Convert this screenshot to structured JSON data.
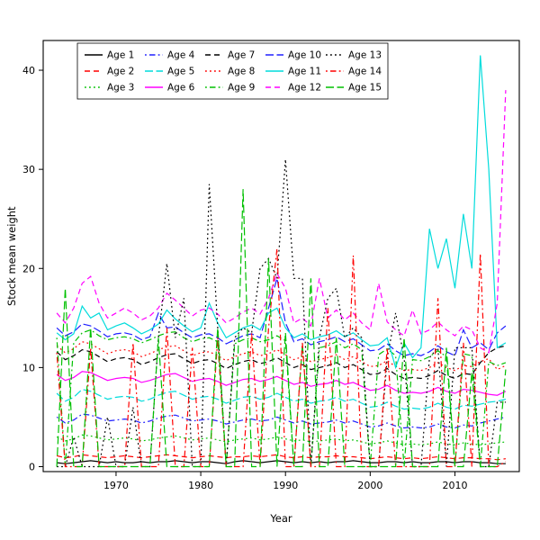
{
  "chart_data": {
    "type": "line",
    "title": "",
    "xlabel": "Year",
    "ylabel": "Stock mean weight",
    "xlim": [
      1961.4,
      2017.6
    ],
    "ylim": [
      -0.5,
      43
    ],
    "x_ticks": [
      1970,
      1980,
      1990,
      2000,
      2010
    ],
    "y_ticks": [
      0,
      10,
      20,
      30,
      40
    ],
    "grid": false,
    "legend_position": "top-left-inside",
    "legend_columns": 5,
    "x": [
      1963,
      1964,
      1965,
      1966,
      1967,
      1968,
      1969,
      1970,
      1971,
      1972,
      1973,
      1974,
      1975,
      1976,
      1977,
      1978,
      1979,
      1980,
      1981,
      1982,
      1983,
      1984,
      1985,
      1986,
      1987,
      1988,
      1989,
      1990,
      1991,
      1992,
      1993,
      1994,
      1995,
      1996,
      1997,
      1998,
      1999,
      2000,
      2001,
      2002,
      2003,
      2004,
      2005,
      2006,
      2007,
      2008,
      2009,
      2010,
      2011,
      2012,
      2013,
      2014,
      2015,
      2016
    ],
    "series": [
      {
        "name": "Age 1",
        "color": "#000000",
        "linestyle": "solid",
        "values": [
          0.4,
          0.3,
          0.4,
          0.5,
          0.6,
          0.5,
          0.4,
          0.5,
          0.4,
          0.4,
          0.5,
          0.4,
          0.5,
          0.5,
          0.6,
          0.5,
          0.4,
          0.5,
          0.5,
          0.4,
          0.3,
          0.5,
          0.6,
          0.5,
          0.4,
          0.5,
          0.6,
          0.5,
          0.4,
          0.5,
          0.4,
          0.5,
          0.4,
          0.5,
          0.5,
          0.6,
          0.5,
          0.4,
          0.4,
          0.5,
          0.5,
          0.4,
          0.5,
          0.4,
          0.4,
          0.5,
          0.5,
          0.4,
          0.5,
          0.5,
          0.4,
          0.4,
          0.3,
          0.3
        ]
      },
      {
        "name": "Age 2",
        "color": "#ff0000",
        "linestyle": "dashed",
        "values": [
          1.1,
          0.9,
          1.0,
          1.2,
          1.1,
          1.0,
          0.9,
          1.0,
          1.1,
          1.0,
          0.9,
          1.0,
          1.1,
          1.2,
          1.1,
          1.0,
          0.9,
          1.0,
          1.1,
          1.0,
          0.9,
          1.0,
          1.0,
          1.1,
          1.0,
          1.1,
          1.2,
          1.0,
          0.9,
          1.0,
          0.9,
          1.0,
          1.0,
          1.1,
          1.0,
          1.0,
          0.9,
          0.8,
          0.9,
          1.0,
          0.9,
          0.8,
          0.9,
          0.8,
          0.9,
          1.0,
          0.9,
          0.8,
          0.9,
          0.9,
          0.8,
          0.8,
          0.7,
          0.8
        ]
      },
      {
        "name": "Age 3",
        "color": "#00c000",
        "linestyle": "dotted",
        "values": [
          3.0,
          2.6,
          2.8,
          3.2,
          3.1,
          2.9,
          2.7,
          2.8,
          2.9,
          2.8,
          2.6,
          2.7,
          2.9,
          3.0,
          3.1,
          2.9,
          2.7,
          2.8,
          2.9,
          2.7,
          2.5,
          2.7,
          2.8,
          2.9,
          2.7,
          2.8,
          3.0,
          2.8,
          2.6,
          2.7,
          2.5,
          2.6,
          2.7,
          2.8,
          2.6,
          2.7,
          2.5,
          2.3,
          2.4,
          2.6,
          2.4,
          2.2,
          2.3,
          2.2,
          2.3,
          2.5,
          2.3,
          2.2,
          2.4,
          2.3,
          2.2,
          2.3,
          2.4,
          2.5
        ]
      },
      {
        "name": "Age 4",
        "color": "#2020ff",
        "linestyle": "dotdash",
        "values": [
          5.0,
          4.4,
          4.7,
          5.3,
          5.2,
          4.9,
          4.6,
          4.7,
          4.8,
          4.7,
          4.4,
          4.6,
          4.9,
          5.1,
          5.2,
          4.9,
          4.6,
          4.7,
          4.8,
          4.6,
          4.3,
          4.5,
          4.7,
          4.8,
          4.6,
          4.7,
          5.0,
          4.7,
          4.4,
          4.6,
          4.3,
          4.4,
          4.5,
          4.7,
          4.4,
          4.6,
          4.3,
          4.0,
          4.1,
          4.4,
          4.1,
          3.9,
          4.0,
          3.9,
          4.0,
          4.3,
          4.0,
          3.9,
          4.2,
          4.1,
          4.4,
          4.6,
          4.8,
          5.0
        ]
      },
      {
        "name": "Age 5",
        "color": "#00dcdc",
        "linestyle": "longdash",
        "values": [
          7.4,
          6.6,
          7.0,
          7.8,
          7.6,
          7.2,
          6.8,
          7.0,
          7.1,
          7.0,
          6.6,
          6.8,
          7.2,
          7.5,
          7.6,
          7.2,
          6.8,
          7.0,
          7.1,
          6.8,
          6.4,
          6.7,
          7.0,
          7.1,
          6.8,
          7.0,
          7.4,
          7.0,
          6.6,
          6.8,
          6.4,
          6.6,
          6.7,
          7.0,
          6.6,
          6.8,
          6.4,
          6.0,
          6.1,
          6.5,
          6.1,
          5.8,
          5.9,
          5.8,
          6.0,
          6.4,
          6.0,
          5.8,
          6.2,
          6.1,
          6.3,
          6.5,
          6.6,
          6.8
        ]
      },
      {
        "name": "Age 6",
        "color": "#ff00ff",
        "linestyle": "solid",
        "values": [
          9.3,
          8.7,
          9.0,
          9.6,
          9.5,
          9.1,
          8.7,
          8.9,
          9.0,
          8.9,
          8.5,
          8.7,
          9.0,
          9.3,
          9.4,
          9.0,
          8.6,
          8.8,
          8.9,
          8.6,
          8.2,
          8.5,
          8.8,
          8.9,
          8.6,
          8.8,
          9.1,
          8.7,
          8.3,
          8.5,
          8.1,
          8.3,
          8.4,
          8.7,
          8.3,
          8.5,
          8.1,
          7.7,
          7.8,
          8.2,
          7.7,
          7.4,
          7.5,
          7.4,
          7.6,
          8.0,
          7.6,
          7.4,
          7.8,
          7.7,
          7.5,
          7.3,
          7.2,
          7.6
        ]
      },
      {
        "name": "Age 7",
        "color": "#000000",
        "linestyle": "dashed",
        "values": [
          11.6,
          10.8,
          11.2,
          11.8,
          11.6,
          11.1,
          10.6,
          10.9,
          11.0,
          10.8,
          10.3,
          10.6,
          11.0,
          11.3,
          11.4,
          10.9,
          10.4,
          10.7,
          10.8,
          10.4,
          9.9,
          10.3,
          10.6,
          10.8,
          10.4,
          10.6,
          11.0,
          10.5,
          10.0,
          10.3,
          9.8,
          10.0,
          10.2,
          10.5,
          10.0,
          10.3,
          9.8,
          9.3,
          9.4,
          9.9,
          9.3,
          8.9,
          9.0,
          8.9,
          9.2,
          9.7,
          9.2,
          8.9,
          9.4,
          9.3,
          10.5,
          11.5,
          12.0,
          12.2
        ]
      },
      {
        "name": "Age 8",
        "color": "#ff0000",
        "linestyle": "dotted",
        "values": [
          12.2,
          11.5,
          11.9,
          12.6,
          12.4,
          11.9,
          11.4,
          11.7,
          11.8,
          11.6,
          11.1,
          11.4,
          11.8,
          12.1,
          12.2,
          11.7,
          11.2,
          11.5,
          11.6,
          11.2,
          10.7,
          11.1,
          11.4,
          11.6,
          11.2,
          11.4,
          11.8,
          11.3,
          10.8,
          11.1,
          10.6,
          10.8,
          11.0,
          11.3,
          10.8,
          11.1,
          10.6,
          10.1,
          10.2,
          10.7,
          10.1,
          9.7,
          9.8,
          9.7,
          10.0,
          10.5,
          10.0,
          9.7,
          10.2,
          10.1,
          10.6,
          10.9,
          9.8,
          10.2
        ]
      },
      {
        "name": "Age 9",
        "color": "#00c000",
        "linestyle": "dotdash",
        "values": [
          13.0,
          0,
          12.5,
          13.5,
          13.8,
          13.2,
          12.8,
          13.0,
          13.1,
          12.9,
          12.5,
          12.8,
          13.2,
          13.5,
          13.6,
          13.0,
          12.6,
          12.9,
          13.0,
          12.6,
          0,
          12.4,
          12.8,
          13.0,
          12.6,
          12.8,
          13.2,
          12.7,
          0,
          12.4,
          0,
          12.0,
          12.2,
          12.6,
          12.0,
          12.4,
          11.8,
          0,
          11.3,
          11.9,
          11.2,
          0,
          10.8,
          10.7,
          11.1,
          11.7,
          11.1,
          0,
          11.4,
          11.2,
          0,
          10.6,
          10.2,
          10.5
        ]
      },
      {
        "name": "Age 10",
        "color": "#2020ff",
        "linestyle": "longdash",
        "values": [
          14.0,
          13.2,
          13.6,
          14.4,
          14.2,
          13.7,
          13.1,
          13.4,
          13.5,
          13.3,
          12.8,
          13.1,
          15.5,
          14.0,
          14.1,
          13.5,
          13.0,
          13.3,
          13.4,
          13.0,
          12.4,
          12.8,
          13.2,
          13.4,
          13.0,
          16.0,
          19.0,
          14.5,
          12.6,
          12.9,
          12.3,
          12.6,
          12.8,
          13.1,
          12.6,
          12.9,
          12.3,
          11.7,
          11.8,
          12.4,
          11.7,
          11.2,
          11.4,
          11.2,
          11.6,
          12.2,
          11.6,
          11.2,
          13.8,
          12.0,
          12.5,
          11.8,
          13.5,
          14.2
        ]
      },
      {
        "name": "Age 11",
        "color": "#00dcdc",
        "linestyle": "solid",
        "values": [
          13.5,
          12.8,
          13.4,
          16.2,
          15.0,
          15.5,
          13.8,
          14.2,
          14.5,
          14.0,
          13.4,
          13.8,
          14.4,
          15.8,
          14.9,
          14.2,
          13.6,
          14.0,
          16.5,
          14.5,
          13.0,
          13.5,
          14.0,
          14.3,
          13.8,
          15.5,
          16.0,
          14.0,
          13.0,
          13.4,
          12.8,
          13.1,
          13.3,
          13.7,
          13.1,
          13.5,
          12.8,
          12.2,
          12.3,
          13.0,
          10.0,
          12.5,
          11.0,
          12.0,
          24.0,
          20.0,
          23.0,
          18.0,
          25.5,
          20.0,
          41.5,
          30.0,
          12.0,
          12.5
        ]
      },
      {
        "name": "Age 12",
        "color": "#ff00ff",
        "linestyle": "dashed",
        "values": [
          15.5,
          14.5,
          16.0,
          18.5,
          19.2,
          16.5,
          15.0,
          15.5,
          16.0,
          15.5,
          14.8,
          15.2,
          16.0,
          17.5,
          16.8,
          16.0,
          15.2,
          15.8,
          16.0,
          15.4,
          14.5,
          15.0,
          15.6,
          16.0,
          15.4,
          17.0,
          19.5,
          18.0,
          14.5,
          15.0,
          14.2,
          19.0,
          15.0,
          15.8,
          14.8,
          15.5,
          14.5,
          13.8,
          18.5,
          14.6,
          13.8,
          13.2,
          15.8,
          13.4,
          13.8,
          14.6,
          13.8,
          13.2,
          14.2,
          13.8,
          12.0,
          11.5,
          16.5,
          38.0
        ]
      },
      {
        "name": "Age 13",
        "color": "#000000",
        "linestyle": "dotted",
        "values": [
          0,
          0,
          3.0,
          0,
          0,
          0,
          5.0,
          0,
          0,
          6.0,
          0,
          0,
          13.0,
          20.5,
          13.0,
          17.0,
          0,
          0,
          28.5,
          14.0,
          0,
          13.0,
          14.0,
          13.5,
          20.0,
          21.0,
          19.0,
          31.0,
          19.0,
          19.0,
          0,
          13.0,
          17.0,
          18.0,
          13.0,
          14.0,
          13.0,
          0,
          0,
          11.0,
          15.5,
          11.0,
          0,
          0,
          11.0,
          12.0,
          0,
          12.0,
          12.0,
          12.0,
          0,
          0,
          6.5,
          6.5
        ]
      },
      {
        "name": "Age 14",
        "color": "#ff0000",
        "linestyle": "dotdash",
        "values": [
          11.5,
          0,
          0,
          0,
          12.0,
          0,
          0,
          0,
          0,
          12.5,
          0,
          0,
          0,
          14.0,
          0,
          0,
          12.0,
          0,
          0,
          13.0,
          0,
          0,
          0,
          13.5,
          0,
          14.0,
          22.0,
          0,
          0,
          12.5,
          0,
          0,
          16.0,
          0,
          0,
          21.3,
          0,
          0,
          0,
          12.0,
          0,
          0,
          0,
          0,
          0,
          17.0,
          0,
          0,
          12.5,
          0,
          21.5,
          0,
          0,
          0.5
        ]
      },
      {
        "name": "Age 15",
        "color": "#00c000",
        "linestyle": "longdash",
        "values": [
          0,
          18.0,
          0,
          0,
          14.0,
          0,
          0,
          0,
          0,
          0,
          0,
          0,
          13.0,
          0,
          0,
          0,
          0,
          0,
          0,
          14.0,
          0,
          0,
          28.0,
          0,
          0,
          21.0,
          0,
          13.5,
          0,
          0,
          19.0,
          0,
          0,
          13.0,
          0,
          0,
          0,
          0,
          0,
          0,
          0,
          13.0,
          0,
          0,
          0,
          0,
          12.0,
          0,
          0,
          9.5,
          0,
          0,
          0,
          9.8
        ]
      }
    ]
  }
}
